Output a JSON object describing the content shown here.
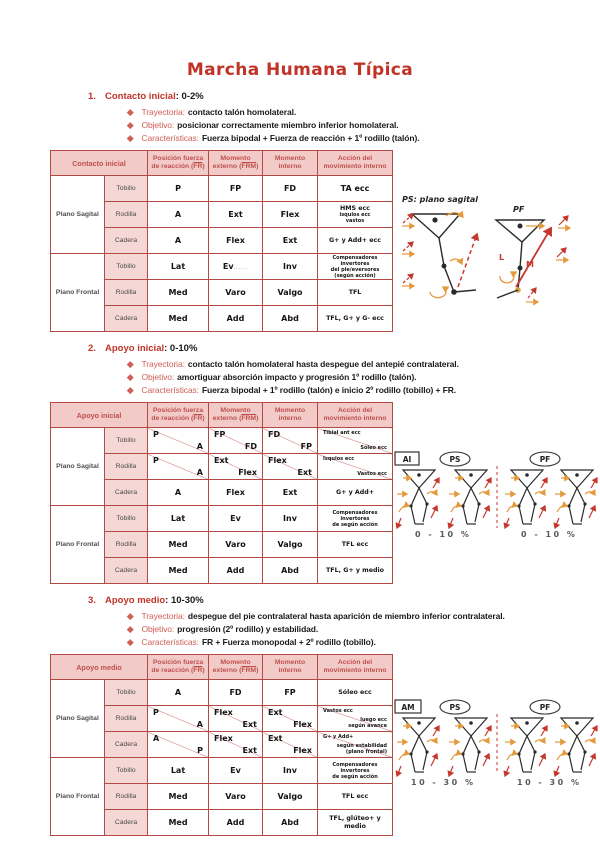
{
  "page": {
    "title": "Marcha Humana Típica"
  },
  "colors": {
    "accent_red": "#c13327",
    "table_border": "#b44946",
    "header_bg": "#f2cbc9",
    "joint_bg": "#f5d8d6",
    "bullet_label": "#cf6058",
    "sketch_red": "#c5372c",
    "sketch_orange": "#e59a3c"
  },
  "icons": {
    "bullet": "diamond-icon"
  },
  "sections": [
    {
      "number": "1.",
      "heading": "Contacto inicial",
      "range": ": 0-2%",
      "bullets": [
        {
          "label": "Trayectoria:",
          "text": "contacto talón homolateral."
        },
        {
          "label": "Objetivo:",
          "text": "posicionar correctamente miembro inferior homolateral."
        },
        {
          "label": "Características:",
          "text": "Fuerza bipodal + Fuerza de reacción + 1º rodillo (talón)."
        }
      ],
      "table": {
        "corner": "Contacto inicial",
        "headers": [
          {
            "text": "Posición fuerza de reacción",
            "abbr": "FR"
          },
          {
            "text": "Momento externo",
            "abbr": "FRM"
          },
          {
            "text": "Momento interno"
          },
          {
            "text": "Acción del movimiento interno"
          }
        ],
        "groups": [
          {
            "label": "Plano Sagital",
            "rows": [
              {
                "joint": "Tobillo",
                "cells": [
                  {
                    "v": "P"
                  },
                  {
                    "v": "FP"
                  },
                  {
                    "v": "FD"
                  },
                  {
                    "v": "TA ecc"
                  }
                ]
              },
              {
                "joint": "Rodilla",
                "cells": [
                  {
                    "v": "A"
                  },
                  {
                    "v": "Ext"
                  },
                  {
                    "v": "Flex"
                  },
                  {
                    "v": "HMS ecc",
                    "sz": "sm",
                    "sub": [
                      "isquios ecc",
                      "vastos"
                    ]
                  }
                ]
              },
              {
                "joint": "Cadera",
                "cells": [
                  {
                    "v": "A"
                  },
                  {
                    "v": "Flex"
                  },
                  {
                    "v": "Ext"
                  },
                  {
                    "v": "G+ y Add+ ecc",
                    "sz": "sm"
                  }
                ]
              }
            ]
          },
          {
            "label": "Plano Frontal",
            "rows": [
              {
                "joint": "Tobillo",
                "cells": [
                  {
                    "v": "Lat"
                  },
                  {
                    "v": "Ev",
                    "tail": "......"
                  },
                  {
                    "v": "Inv"
                  },
                  {
                    "lines": [
                      "Compensadores invertores",
                      "del pie/eversores",
                      "(según acción)"
                    ]
                  }
                ]
              },
              {
                "joint": "Rodilla",
                "cells": [
                  {
                    "v": "Med"
                  },
                  {
                    "v": "Varo"
                  },
                  {
                    "v": "Valgo"
                  },
                  {
                    "v": "TFL",
                    "sz": "sm"
                  }
                ]
              },
              {
                "joint": "Cadera",
                "cells": [
                  {
                    "v": "Med"
                  },
                  {
                    "v": "Add"
                  },
                  {
                    "v": "Abd"
                  },
                  {
                    "v": "TFL, G+ y G- ecc",
                    "sz": "sm"
                  }
                ]
              }
            ]
          }
        ]
      },
      "sketch": {
        "label_ps": "PS: plano sagital",
        "label_pf": "PF",
        "letter_l": "L",
        "letter_m": "M"
      }
    },
    {
      "number": "2.",
      "heading": "Apoyo inicial",
      "range": ": 0-10%",
      "bullets": [
        {
          "label": "Trayectoria:",
          "text": "contacto talón homolateral hasta despegue del antepié contralateral."
        },
        {
          "label": "Objetivo:",
          "text": "amortiguar absorción impacto y progresión 1º rodillo (talón)."
        },
        {
          "label": "Características:",
          "text": "Fuerza bipodal + 1º rodillo (talón) e inicio 2º rodillo (tobillo) + FR."
        }
      ],
      "table": {
        "corner": "Apoyo inicial",
        "headers": [
          {
            "text": "Posición fuerza de reacción",
            "abbr": "FR"
          },
          {
            "text": "Momento externo",
            "abbr": "FRM"
          },
          {
            "text": "Momento interno"
          },
          {
            "text": "Acción del movimiento interno"
          }
        ],
        "groups": [
          {
            "label": "Plano Sagital",
            "rows": [
              {
                "joint": "Tobillo",
                "cells": [
                  {
                    "tl": "P",
                    "br": "A"
                  },
                  {
                    "tl": "FP",
                    "br": "FD"
                  },
                  {
                    "tl": "FD",
                    "br": "FP"
                  },
                  {
                    "tl": "Tibial ant ecc",
                    "br": "Sóleo ecc",
                    "sz": "xs"
                  }
                ]
              },
              {
                "joint": "Rodilla",
                "cells": [
                  {
                    "tl": "P",
                    "br": "A"
                  },
                  {
                    "tl": "Ext",
                    "br": "Flex"
                  },
                  {
                    "tl": "Flex",
                    "br": "Ext"
                  },
                  {
                    "tl": "Isquios ecc",
                    "br": "Vastos ecc",
                    "sz": "xs"
                  }
                ]
              },
              {
                "joint": "Cadera",
                "cells": [
                  {
                    "v": "A"
                  },
                  {
                    "v": "Flex"
                  },
                  {
                    "v": "Ext"
                  },
                  {
                    "v": "G+ y Add+",
                    "sz": "sm"
                  }
                ]
              }
            ]
          },
          {
            "label": "Plano Frontal",
            "rows": [
              {
                "joint": "Tobillo",
                "cells": [
                  {
                    "v": "Lat"
                  },
                  {
                    "v": "Ev"
                  },
                  {
                    "v": "Inv"
                  },
                  {
                    "lines": [
                      "Compensadores invertores",
                      "de según acción"
                    ]
                  }
                ]
              },
              {
                "joint": "Rodilla",
                "cells": [
                  {
                    "v": "Med"
                  },
                  {
                    "v": "Varo"
                  },
                  {
                    "v": "Valgo"
                  },
                  {
                    "v": "TFL ecc",
                    "sz": "sm"
                  }
                ]
              },
              {
                "joint": "Cadera",
                "cells": [
                  {
                    "v": "Med"
                  },
                  {
                    "v": "Add"
                  },
                  {
                    "v": "Abd"
                  },
                  {
                    "v": "TFL, G+ y medio",
                    "sz": "sm"
                  }
                ]
              }
            ]
          }
        ]
      },
      "sketch": {
        "tag": "AI",
        "ps": "PS",
        "pf": "PF",
        "pct_left": "0 - 10 %",
        "pct_right": "0 - 10 %"
      }
    },
    {
      "number": "3.",
      "heading": "Apoyo medio",
      "range": ": 10-30%",
      "bullets": [
        {
          "label": "Trayectoria:",
          "text": "despegue del pie contralateral hasta aparición de miembro inferior contralateral."
        },
        {
          "label": "Objetivo:",
          "text": "progresión (2º rodillo) y estabilidad."
        },
        {
          "label": "Características:",
          "text": "FR + Fuerza monopodal + 2º rodillo (tobillo)."
        }
      ],
      "table": {
        "corner": "Apoyo medio",
        "headers": [
          {
            "text": "Posición fuerza de reacción",
            "abbr": "FR"
          },
          {
            "text": "Momento externo",
            "abbr": "FRM"
          },
          {
            "text": "Momento interno"
          },
          {
            "text": "Acción del movimiento interno"
          }
        ],
        "groups": [
          {
            "label": "Plano Sagital",
            "rows": [
              {
                "joint": "Tobillo",
                "cells": [
                  {
                    "v": "A"
                  },
                  {
                    "v": "FD"
                  },
                  {
                    "v": "FP"
                  },
                  {
                    "v": "Sóleo ecc",
                    "sz": "sm"
                  }
                ]
              },
              {
                "joint": "Rodilla",
                "cells": [
                  {
                    "tl": "P",
                    "br": "A"
                  },
                  {
                    "tl": "Flex",
                    "br": "Ext"
                  },
                  {
                    "tl": "Ext",
                    "br": "Flex"
                  },
                  {
                    "tl": "Vastos ecc",
                    "brLines": [
                      "luego ecc",
                      "según avance"
                    ],
                    "sz": "xs"
                  }
                ]
              },
              {
                "joint": "Cadera",
                "cells": [
                  {
                    "tl": "A",
                    "br": "P"
                  },
                  {
                    "tl": "Flex",
                    "br": "Ext"
                  },
                  {
                    "tl": "Ext",
                    "br": "Flex"
                  },
                  {
                    "tl": "G+ y Add+",
                    "brLines": [
                      "según estabilidad",
                      "(plano frontal)"
                    ],
                    "sz": "xs"
                  }
                ]
              }
            ]
          },
          {
            "label": "Plano Frontal",
            "rows": [
              {
                "joint": "Tobillo",
                "cells": [
                  {
                    "v": "Lat"
                  },
                  {
                    "v": "Ev"
                  },
                  {
                    "v": "Inv"
                  },
                  {
                    "lines": [
                      "Compensadores invertores",
                      "de según acción"
                    ]
                  }
                ]
              },
              {
                "joint": "Rodilla",
                "cells": [
                  {
                    "v": "Med"
                  },
                  {
                    "v": "Varo"
                  },
                  {
                    "v": "Valgo"
                  },
                  {
                    "v": "TFL ecc",
                    "sz": "sm"
                  }
                ]
              },
              {
                "joint": "Cadera",
                "cells": [
                  {
                    "v": "Med"
                  },
                  {
                    "v": "Add"
                  },
                  {
                    "v": "Abd"
                  },
                  {
                    "v": "TFL, glúteo+ y medio",
                    "sz": "sm"
                  }
                ]
              }
            ]
          }
        ]
      },
      "sketch": {
        "tag": "AM",
        "ps": "PS",
        "pf": "PF",
        "pct_left": "10 - 30 %",
        "pct_right": "10 - 30 %"
      }
    }
  ]
}
